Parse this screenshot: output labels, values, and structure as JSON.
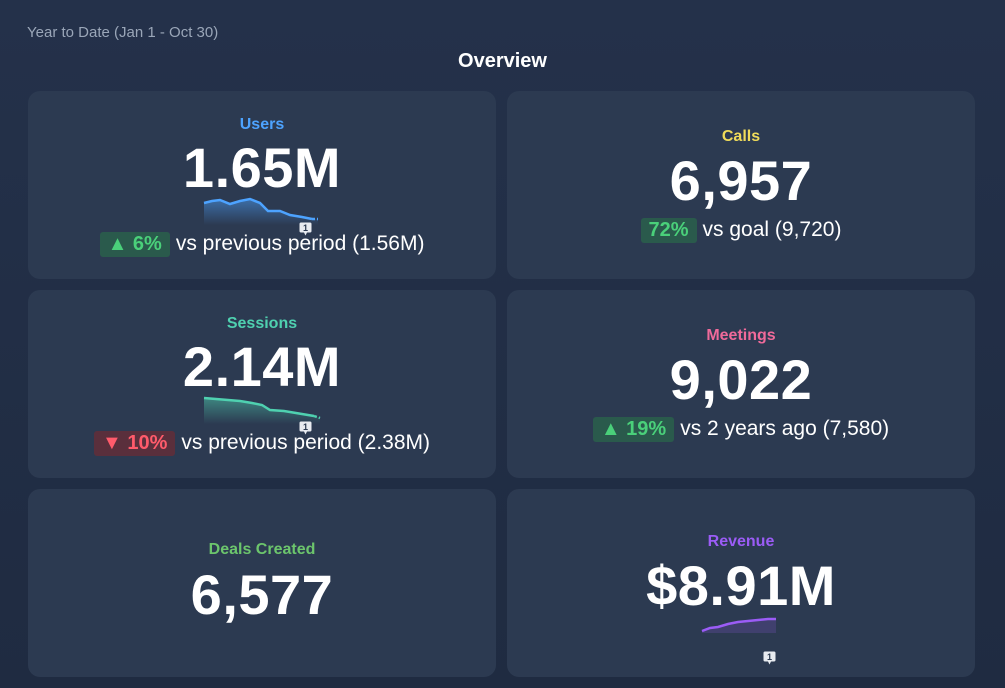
{
  "header": {
    "period": "Year to Date (Jan 1 - Oct 30)",
    "title": "Overview"
  },
  "colors": {
    "users": "#4da3ff",
    "calls": "#f0dc5a",
    "sessions": "#4fd1b0",
    "meetings": "#f06a9a",
    "deals": "#6cc56c",
    "revenue": "#9b5cf6"
  },
  "cards": {
    "users": {
      "label": "Users",
      "value": "1.65M",
      "change": "▲ 6%",
      "compare": "vs previous period (1.56M)",
      "note_count": "1"
    },
    "calls": {
      "label": "Calls",
      "value": "6,957",
      "change": "72%",
      "compare": "vs goal (9,720)"
    },
    "sessions": {
      "label": "Sessions",
      "value": "2.14M",
      "change": "▼ 10%",
      "compare": "vs previous period (2.38M)",
      "note_count": "1"
    },
    "meetings": {
      "label": "Meetings",
      "value": "9,022",
      "change": "▲ 19%",
      "compare": "vs 2 years ago (7,580)"
    },
    "deals": {
      "label": "Deals Created",
      "value": "6,577"
    },
    "revenue": {
      "label": "Revenue",
      "value": "$8.91M",
      "note_count": "1"
    }
  }
}
